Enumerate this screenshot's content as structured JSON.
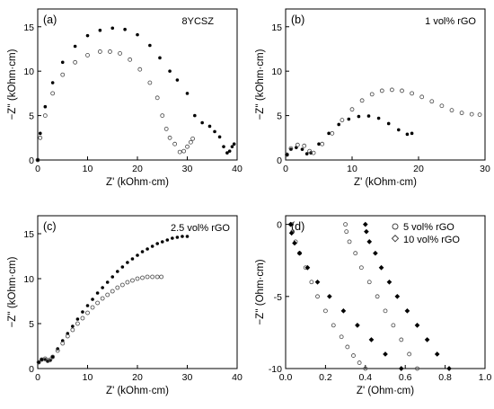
{
  "chart_data": [
    {
      "panel_label": "(a)",
      "annotation": "8YCSZ",
      "type": "scatter",
      "xlabel": "Z' (kOhm·cm)",
      "ylabel": "−Z'' (kOhm·cm)",
      "xlim": [
        0,
        40
      ],
      "ylim": [
        0,
        17
      ],
      "xticks": [
        "0",
        "10",
        "20",
        "30",
        "40"
      ],
      "yticks": [
        "0",
        "5",
        "10",
        "15"
      ],
      "series": [
        {
          "marker": "filled-circle",
          "points": [
            [
              0,
              0
            ],
            [
              0.5,
              3
            ],
            [
              1.5,
              6
            ],
            [
              3,
              8.7
            ],
            [
              5,
              11
            ],
            [
              7.5,
              12.8
            ],
            [
              10,
              14
            ],
            [
              12.5,
              14.6
            ],
            [
              15,
              14.85
            ],
            [
              17.5,
              14.7
            ],
            [
              20,
              14.1
            ],
            [
              22.5,
              12.9
            ],
            [
              24.5,
              11.5
            ],
            [
              26.5,
              10
            ],
            [
              28,
              9
            ],
            [
              30,
              7.5
            ],
            [
              31.5,
              5
            ],
            [
              33,
              4.2
            ],
            [
              34.5,
              3.8
            ],
            [
              35.5,
              3.2
            ],
            [
              36.5,
              2.6
            ],
            [
              37.3,
              1.5
            ],
            [
              38,
              0.8
            ],
            [
              38.5,
              1
            ],
            [
              39,
              1.5
            ],
            [
              39.4,
              1.8
            ]
          ]
        },
        {
          "marker": "open-circle",
          "points": [
            [
              0,
              0
            ],
            [
              0.5,
              2.5
            ],
            [
              1.5,
              5
            ],
            [
              3,
              7.5
            ],
            [
              5,
              9.6
            ],
            [
              7.5,
              11
            ],
            [
              10,
              11.8
            ],
            [
              12.5,
              12.2
            ],
            [
              14.5,
              12.2
            ],
            [
              16.5,
              12
            ],
            [
              18.5,
              11.3
            ],
            [
              20.5,
              10.2
            ],
            [
              22.5,
              8.7
            ],
            [
              24,
              7
            ],
            [
              25,
              5
            ],
            [
              25.8,
              3.5
            ],
            [
              26.5,
              2.5
            ],
            [
              27.5,
              1.8
            ],
            [
              28.5,
              0.9
            ],
            [
              29.3,
              1
            ],
            [
              30,
              1.5
            ],
            [
              30.7,
              2
            ],
            [
              31.1,
              2.4
            ]
          ]
        }
      ]
    },
    {
      "panel_label": "(b)",
      "annotation": "1 vol% rGO",
      "type": "scatter",
      "xlabel": "Z' (kOhm·cm)",
      "ylabel": "−Z'' (kOhm·cm)",
      "xlim": [
        0,
        30
      ],
      "ylim": [
        0,
        17
      ],
      "xticks": [
        "0",
        "10",
        "20",
        "30"
      ],
      "yticks": [
        "0",
        "5",
        "10",
        "15"
      ],
      "series": [
        {
          "marker": "filled-circle",
          "points": [
            [
              0.2,
              0.6
            ],
            [
              0.8,
              1.2
            ],
            [
              1.6,
              1.4
            ],
            [
              2.5,
              1.2
            ],
            [
              3.2,
              0.7
            ],
            [
              3.8,
              0.8
            ],
            [
              5,
              1.8
            ],
            [
              6.5,
              3
            ],
            [
              8,
              4
            ],
            [
              9.5,
              4.6
            ],
            [
              11,
              4.9
            ],
            [
              12.5,
              4.95
            ],
            [
              14,
              4.7
            ],
            [
              15.5,
              4.1
            ],
            [
              17,
              3.4
            ],
            [
              18.3,
              2.9
            ],
            [
              19,
              3
            ]
          ]
        },
        {
          "marker": "open-circle",
          "points": [
            [
              0.2,
              0.6
            ],
            [
              0.8,
              1.3
            ],
            [
              1.8,
              1.7
            ],
            [
              2.8,
              1.6
            ],
            [
              3.6,
              1
            ],
            [
              4.2,
              0.8
            ],
            [
              5.5,
              1.8
            ],
            [
              7,
              3
            ],
            [
              8.5,
              4.5
            ],
            [
              10,
              5.7
            ],
            [
              11.5,
              6.7
            ],
            [
              13,
              7.4
            ],
            [
              14.5,
              7.8
            ],
            [
              16,
              7.9
            ],
            [
              17.5,
              7.8
            ],
            [
              19,
              7.5
            ],
            [
              20.5,
              7.1
            ],
            [
              22,
              6.6
            ],
            [
              23.5,
              6.1
            ],
            [
              25,
              5.6
            ],
            [
              26.5,
              5.3
            ],
            [
              28,
              5.15
            ],
            [
              29.2,
              5.1
            ]
          ]
        }
      ]
    },
    {
      "panel_label": "(c)",
      "annotation": "2.5 vol% rGO",
      "type": "scatter",
      "xlabel": "Z' (kOhm·cm)",
      "ylabel": "−Z'' (kOhm·cm)",
      "xlim": [
        0,
        40
      ],
      "ylim": [
        0,
        17
      ],
      "xticks": [
        "0",
        "10",
        "20",
        "30",
        "40"
      ],
      "yticks": [
        "0",
        "5",
        "10",
        "15"
      ],
      "series": [
        {
          "marker": "filled-circle",
          "points": [
            [
              0.2,
              0.7
            ],
            [
              0.8,
              1
            ],
            [
              1.5,
              1
            ],
            [
              2,
              0.8
            ],
            [
              2.5,
              0.9
            ],
            [
              3,
              1.3
            ],
            [
              4,
              2.2
            ],
            [
              5,
              3.1
            ],
            [
              6,
              3.9
            ],
            [
              7,
              4.7
            ],
            [
              8,
              5.5
            ],
            [
              9,
              6.3
            ],
            [
              10,
              7
            ],
            [
              11,
              7.7
            ],
            [
              12,
              8.4
            ],
            [
              13,
              9
            ],
            [
              14,
              9.6
            ],
            [
              15,
              10.2
            ],
            [
              16,
              10.8
            ],
            [
              17,
              11.3
            ],
            [
              18,
              11.8
            ],
            [
              19,
              12.2
            ],
            [
              20,
              12.6
            ],
            [
              21,
              13
            ],
            [
              22,
              13.3
            ],
            [
              23,
              13.6
            ],
            [
              24,
              13.9
            ],
            [
              25,
              14.1
            ],
            [
              26,
              14.3
            ],
            [
              27,
              14.5
            ],
            [
              28,
              14.6
            ],
            [
              29,
              14.7
            ],
            [
              30,
              14.7
            ]
          ]
        },
        {
          "marker": "open-circle",
          "points": [
            [
              0.2,
              0.7
            ],
            [
              0.8,
              1
            ],
            [
              1.5,
              1.1
            ],
            [
              2,
              0.9
            ],
            [
              2.5,
              1
            ],
            [
              3,
              1.3
            ],
            [
              4,
              2
            ],
            [
              5,
              2.8
            ],
            [
              6,
              3.6
            ],
            [
              7,
              4.3
            ],
            [
              8,
              5
            ],
            [
              9,
              5.6
            ],
            [
              10,
              6.2
            ],
            [
              11,
              6.8
            ],
            [
              12,
              7.3
            ],
            [
              13,
              7.8
            ],
            [
              14,
              8.2
            ],
            [
              15,
              8.6
            ],
            [
              16,
              9
            ],
            [
              17,
              9.3
            ],
            [
              18,
              9.6
            ],
            [
              19,
              9.8
            ],
            [
              20,
              10
            ],
            [
              21,
              10.1
            ],
            [
              22,
              10.2
            ],
            [
              23,
              10.2
            ],
            [
              24,
              10.2
            ],
            [
              24.8,
              10.2
            ]
          ]
        }
      ]
    },
    {
      "panel_label": "(d)",
      "type": "scatter",
      "xlabel": "Z' (Ohm·cm)",
      "ylabel": "−Z'' (Ohm·cm)",
      "xlim": [
        0,
        1.0
      ],
      "ylim": [
        -10,
        0.6
      ],
      "xticks": [
        "0.0",
        "0.2",
        "0.4",
        "0.6",
        "0.8",
        "1.0"
      ],
      "yticks": [
        "-10",
        "-5",
        "0"
      ],
      "legend_position": "top-right",
      "series": [
        {
          "name": "5 vol% rGO",
          "marker": "open-circle",
          "points": [
            [
              0.03,
              0
            ],
            [
              0.035,
              -0.5
            ],
            [
              0.05,
              -1.2
            ],
            [
              0.07,
              -2
            ],
            [
              0.1,
              -3
            ],
            [
              0.13,
              -4
            ],
            [
              0.16,
              -5
            ],
            [
              0.2,
              -6
            ],
            [
              0.24,
              -7
            ],
            [
              0.28,
              -7.8
            ],
            [
              0.31,
              -8.5
            ],
            [
              0.34,
              -9.1
            ],
            [
              0.37,
              -9.6
            ],
            [
              0.4,
              -10
            ],
            [
              0.3,
              0
            ],
            [
              0.305,
              -0.5
            ],
            [
              0.32,
              -1.2
            ],
            [
              0.35,
              -2
            ],
            [
              0.38,
              -3
            ],
            [
              0.42,
              -4
            ],
            [
              0.46,
              -5
            ],
            [
              0.5,
              -6
            ],
            [
              0.54,
              -7
            ],
            [
              0.58,
              -8
            ],
            [
              0.62,
              -9
            ],
            [
              0.66,
              -10
            ]
          ]
        },
        {
          "name": "10 vol% rGO",
          "marker": "filled-diamond",
          "points": [
            [
              0.025,
              0
            ],
            [
              0.03,
              -0.6
            ],
            [
              0.045,
              -1.3
            ],
            [
              0.07,
              -2
            ],
            [
              0.11,
              -3
            ],
            [
              0.16,
              -4
            ],
            [
              0.22,
              -5
            ],
            [
              0.29,
              -6
            ],
            [
              0.36,
              -7
            ],
            [
              0.43,
              -8
            ],
            [
              0.5,
              -9
            ],
            [
              0.58,
              -10
            ],
            [
              0.4,
              0
            ],
            [
              0.405,
              -0.5
            ],
            [
              0.42,
              -1.2
            ],
            [
              0.45,
              -2
            ],
            [
              0.48,
              -3
            ],
            [
              0.52,
              -4
            ],
            [
              0.56,
              -5
            ],
            [
              0.61,
              -6
            ],
            [
              0.66,
              -7
            ],
            [
              0.71,
              -8
            ],
            [
              0.76,
              -9
            ],
            [
              0.82,
              -10
            ]
          ]
        }
      ]
    }
  ]
}
